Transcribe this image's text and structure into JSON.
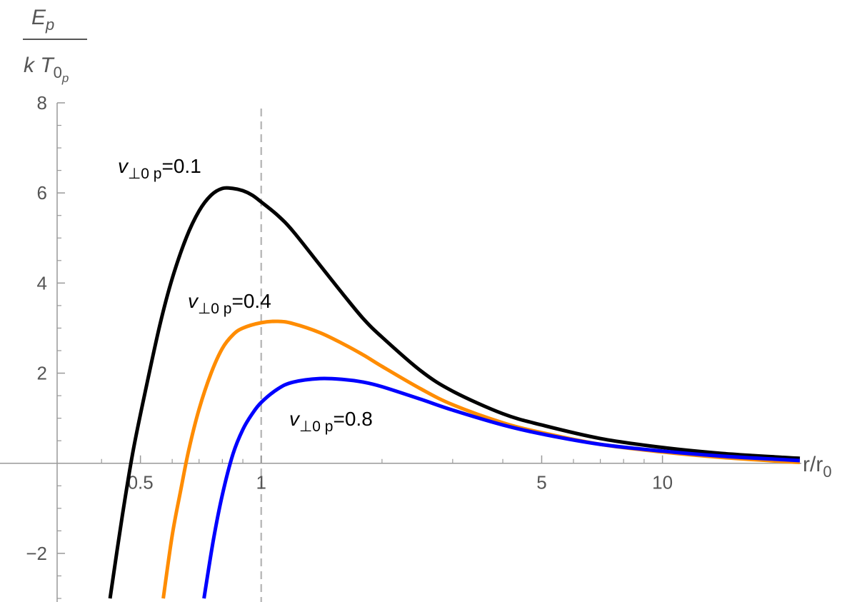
{
  "chart_data": {
    "type": "line",
    "xscale": "log",
    "xlim": [
      0.31,
      22
    ],
    "ylim": [
      -3,
      8
    ],
    "xlabel": {
      "main": "r/r",
      "sub": "0"
    },
    "ylabel": {
      "numerator_main": "E",
      "numerator_sub": "p",
      "denominator_main": "k T",
      "denominator_sub": "0",
      "denominator_subsub": "p"
    },
    "x_ticks": [
      {
        "value": 0.5,
        "label": "0.5"
      },
      {
        "value": 1,
        "label": "1"
      },
      {
        "value": 5,
        "label": "5"
      },
      {
        "value": 10,
        "label": "10"
      }
    ],
    "y_ticks": [
      {
        "value": -2,
        "label": "−2"
      },
      {
        "value": 2,
        "label": "2"
      },
      {
        "value": 4,
        "label": "4"
      },
      {
        "value": 6,
        "label": "6"
      },
      {
        "value": 8,
        "label": "8"
      }
    ],
    "reference_line": {
      "x": 1,
      "style": "dashed",
      "color": "#bbbbbb"
    },
    "series": [
      {
        "name": "v⊥0 p=0.1",
        "label_main": "v",
        "label_sub": "⊥0 p",
        "label_value": "=0.1",
        "color": "#000000",
        "points": [
          [
            0.42,
            -3.0
          ],
          [
            0.45,
            -1.2
          ],
          [
            0.48,
            0.3
          ],
          [
            0.52,
            1.8
          ],
          [
            0.56,
            3.1
          ],
          [
            0.6,
            4.1
          ],
          [
            0.65,
            5.0
          ],
          [
            0.7,
            5.6
          ],
          [
            0.75,
            5.95
          ],
          [
            0.8,
            6.1
          ],
          [
            0.85,
            6.1
          ],
          [
            0.9,
            6.05
          ],
          [
            0.95,
            5.95
          ],
          [
            1.0,
            5.8
          ],
          [
            1.1,
            5.5
          ],
          [
            1.2,
            5.15
          ],
          [
            1.4,
            4.4
          ],
          [
            1.6,
            3.75
          ],
          [
            1.8,
            3.2
          ],
          [
            2.0,
            2.8
          ],
          [
            2.5,
            2.05
          ],
          [
            3.0,
            1.6
          ],
          [
            4.0,
            1.1
          ],
          [
            5.0,
            0.85
          ],
          [
            7.0,
            0.55
          ],
          [
            10.0,
            0.35
          ],
          [
            14.0,
            0.22
          ],
          [
            20.0,
            0.13
          ],
          [
            22.0,
            0.11
          ]
        ]
      },
      {
        "name": "v⊥0 p=0.4",
        "label_main": "v",
        "label_sub": "⊥0 p",
        "label_value": "=0.4",
        "color": "#ff8c00",
        "points": [
          [
            0.57,
            -3.0
          ],
          [
            0.6,
            -1.6
          ],
          [
            0.63,
            -0.6
          ],
          [
            0.66,
            0.3
          ],
          [
            0.7,
            1.2
          ],
          [
            0.75,
            2.0
          ],
          [
            0.8,
            2.55
          ],
          [
            0.85,
            2.85
          ],
          [
            0.9,
            3.0
          ],
          [
            1.0,
            3.12
          ],
          [
            1.1,
            3.15
          ],
          [
            1.2,
            3.1
          ],
          [
            1.4,
            2.9
          ],
          [
            1.6,
            2.65
          ],
          [
            1.8,
            2.4
          ],
          [
            2.0,
            2.15
          ],
          [
            2.5,
            1.65
          ],
          [
            3.0,
            1.3
          ],
          [
            4.0,
            0.9
          ],
          [
            5.0,
            0.68
          ],
          [
            7.0,
            0.42
          ],
          [
            10.0,
            0.25
          ],
          [
            14.0,
            0.13
          ],
          [
            20.0,
            0.04
          ],
          [
            22.0,
            0.02
          ]
        ]
      },
      {
        "name": "v⊥0 p=0.8",
        "label_main": "v",
        "label_sub": "⊥0 p",
        "label_value": "=0.8",
        "color": "#0000ff",
        "points": [
          [
            0.72,
            -3.0
          ],
          [
            0.76,
            -1.7
          ],
          [
            0.8,
            -0.7
          ],
          [
            0.85,
            0.2
          ],
          [
            0.9,
            0.75
          ],
          [
            0.95,
            1.1
          ],
          [
            1.0,
            1.35
          ],
          [
            1.1,
            1.65
          ],
          [
            1.2,
            1.8
          ],
          [
            1.4,
            1.88
          ],
          [
            1.6,
            1.86
          ],
          [
            1.8,
            1.8
          ],
          [
            2.0,
            1.7
          ],
          [
            2.5,
            1.42
          ],
          [
            3.0,
            1.18
          ],
          [
            4.0,
            0.85
          ],
          [
            5.0,
            0.65
          ],
          [
            7.0,
            0.42
          ],
          [
            10.0,
            0.27
          ],
          [
            14.0,
            0.16
          ],
          [
            20.0,
            0.08
          ],
          [
            22.0,
            0.06
          ]
        ]
      }
    ]
  }
}
